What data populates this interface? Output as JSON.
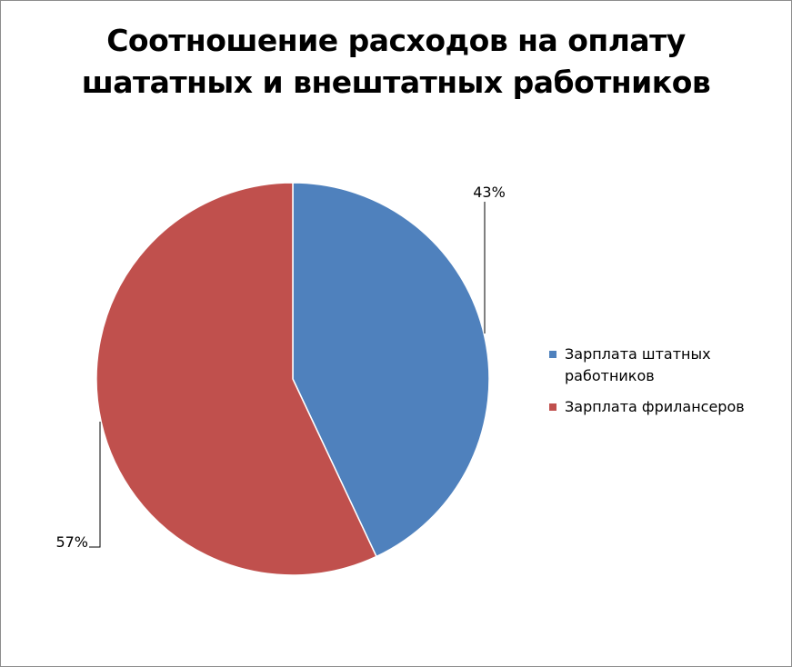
{
  "chart_data": {
    "type": "pie",
    "title": [
      "Соотношение расходов на оплату",
      "шататных и внештатных работников"
    ],
    "slices": [
      {
        "label": "Зарплата штатных работников",
        "legend_lines": [
          "Зарплата штатных",
          "работников"
        ],
        "value": 43,
        "data_label": "43%",
        "color": "#4f81bd"
      },
      {
        "label": "Зарплата фрилансеров",
        "legend_lines": [
          "Зарплата фрилансеров"
        ],
        "value": 57,
        "data_label": "57%",
        "color": "#c0504d"
      }
    ],
    "legend_position": "right"
  }
}
